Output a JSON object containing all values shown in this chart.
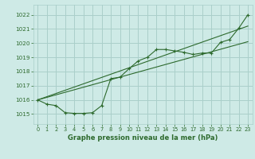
{
  "title": "Graphe pression niveau de la mer (hPa)",
  "bg_color": "#ceeae6",
  "grid_color": "#aacfca",
  "line_color": "#2d6a2d",
  "x_ticks": [
    0,
    1,
    2,
    3,
    4,
    5,
    6,
    7,
    8,
    9,
    10,
    11,
    12,
    13,
    14,
    15,
    16,
    17,
    18,
    19,
    20,
    21,
    22,
    23
  ],
  "y_ticks": [
    1015,
    1016,
    1017,
    1018,
    1019,
    1020,
    1021,
    1022
  ],
  "ylim": [
    1014.3,
    1022.7
  ],
  "xlim": [
    -0.5,
    23.5
  ],
  "curve": [
    1016.0,
    1015.7,
    1015.6,
    1015.1,
    1015.05,
    1015.05,
    1015.1,
    1015.6,
    1017.5,
    1017.6,
    1018.2,
    1018.75,
    1019.0,
    1019.55,
    1019.55,
    1019.45,
    1019.35,
    1019.2,
    1019.3,
    1019.3,
    1020.05,
    1020.25,
    1021.05,
    1022.0
  ],
  "trend1_x": [
    0,
    23
  ],
  "trend1_y": [
    1016.0,
    1020.1
  ],
  "trend2_x": [
    0,
    23
  ],
  "trend2_y": [
    1016.0,
    1021.2
  ],
  "figsize": [
    3.2,
    2.0
  ],
  "dpi": 100
}
